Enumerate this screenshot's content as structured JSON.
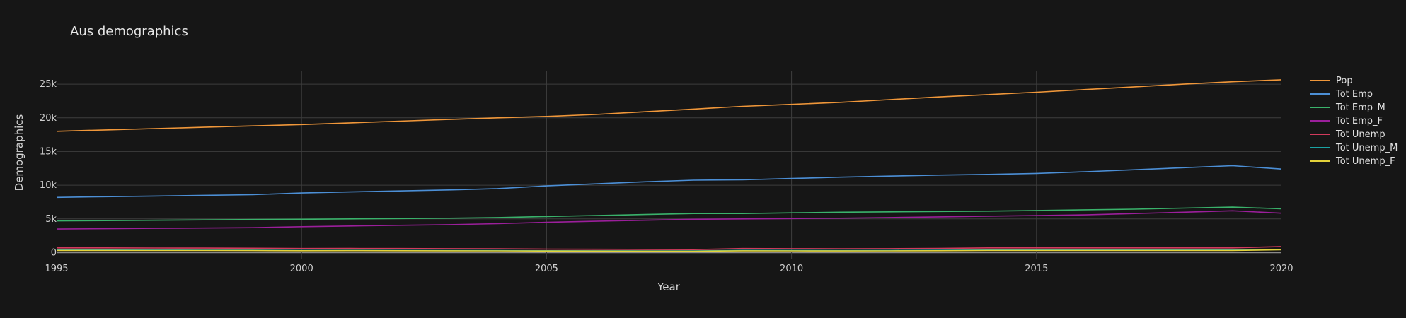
{
  "chart_data": {
    "type": "line",
    "title": "Aus demographics",
    "xlabel": "Year",
    "ylabel": "Demographics",
    "xlim": [
      1995,
      2020
    ],
    "ylim": [
      -1000,
      27000
    ],
    "x_ticks": [
      1995,
      2000,
      2005,
      2010,
      2015,
      2020
    ],
    "x_tick_labels": [
      "1995",
      "2000",
      "2005",
      "2010",
      "2015",
      "2020"
    ],
    "y_ticks": [
      0,
      5000,
      10000,
      15000,
      20000,
      25000
    ],
    "y_tick_labels": [
      "0",
      "5k",
      "10k",
      "15k",
      "20k",
      "25k"
    ],
    "grid": true,
    "legend_position": "right",
    "x": [
      1995,
      1996,
      1997,
      1998,
      1999,
      2000,
      2001,
      2002,
      2003,
      2004,
      2005,
      2006,
      2007,
      2008,
      2009,
      2010,
      2011,
      2012,
      2013,
      2014,
      2015,
      2016,
      2017,
      2018,
      2019,
      2020
    ],
    "series": [
      {
        "name": "Pop",
        "color": "#f0973a",
        "values": [
          18000,
          18200,
          18400,
          18600,
          18800,
          19000,
          19250,
          19500,
          19750,
          20000,
          20200,
          20500,
          20900,
          21300,
          21700,
          22000,
          22300,
          22700,
          23100,
          23450,
          23800,
          24200,
          24600,
          25000,
          25350,
          25650
        ]
      },
      {
        "name": "Tot Emp",
        "color": "#4c8fd6",
        "values": [
          8200,
          8300,
          8400,
          8500,
          8600,
          8850,
          9000,
          9150,
          9300,
          9500,
          9900,
          10200,
          10500,
          10750,
          10800,
          11000,
          11200,
          11350,
          11500,
          11600,
          11750,
          12000,
          12300,
          12600,
          12900,
          12400
        ]
      },
      {
        "name": "Tot Emp_M",
        "color": "#3ab26b",
        "values": [
          4700,
          4750,
          4800,
          4850,
          4900,
          4950,
          5000,
          5050,
          5100,
          5200,
          5350,
          5500,
          5650,
          5800,
          5800,
          5900,
          6000,
          6050,
          6100,
          6150,
          6250,
          6350,
          6450,
          6600,
          6750,
          6500
        ]
      },
      {
        "name": "Tot Emp_F",
        "color": "#9b1f9b",
        "values": [
          3500,
          3550,
          3600,
          3650,
          3700,
          3850,
          3950,
          4050,
          4150,
          4300,
          4500,
          4650,
          4800,
          4950,
          5000,
          5050,
          5100,
          5200,
          5300,
          5400,
          5500,
          5600,
          5800,
          6000,
          6200,
          5850
        ]
      },
      {
        "name": "Tot Unemp",
        "color": "#d13a5c",
        "values": [
          700,
          700,
          680,
          670,
          650,
          600,
          620,
          600,
          580,
          560,
          520,
          500,
          480,
          450,
          600,
          580,
          560,
          580,
          620,
          700,
          700,
          700,
          700,
          700,
          700,
          900
        ]
      },
      {
        "name": "Tot Unemp_M",
        "color": "#1aa3a3",
        "values": [
          380,
          380,
          370,
          360,
          350,
          320,
          330,
          320,
          310,
          300,
          280,
          270,
          260,
          250,
          330,
          320,
          310,
          320,
          340,
          380,
          380,
          380,
          380,
          380,
          380,
          480
        ]
      },
      {
        "name": "Tot Unemp_F",
        "color": "#e3d23a",
        "values": [
          320,
          320,
          310,
          310,
          300,
          280,
          290,
          280,
          270,
          260,
          240,
          230,
          220,
          200,
          270,
          260,
          250,
          260,
          280,
          320,
          320,
          320,
          320,
          320,
          320,
          420
        ]
      }
    ]
  },
  "colors": {
    "background": "#161616",
    "grid": "#3e3e3e",
    "zero_line": "#8a8a8a",
    "text": "#d0d0d0"
  }
}
